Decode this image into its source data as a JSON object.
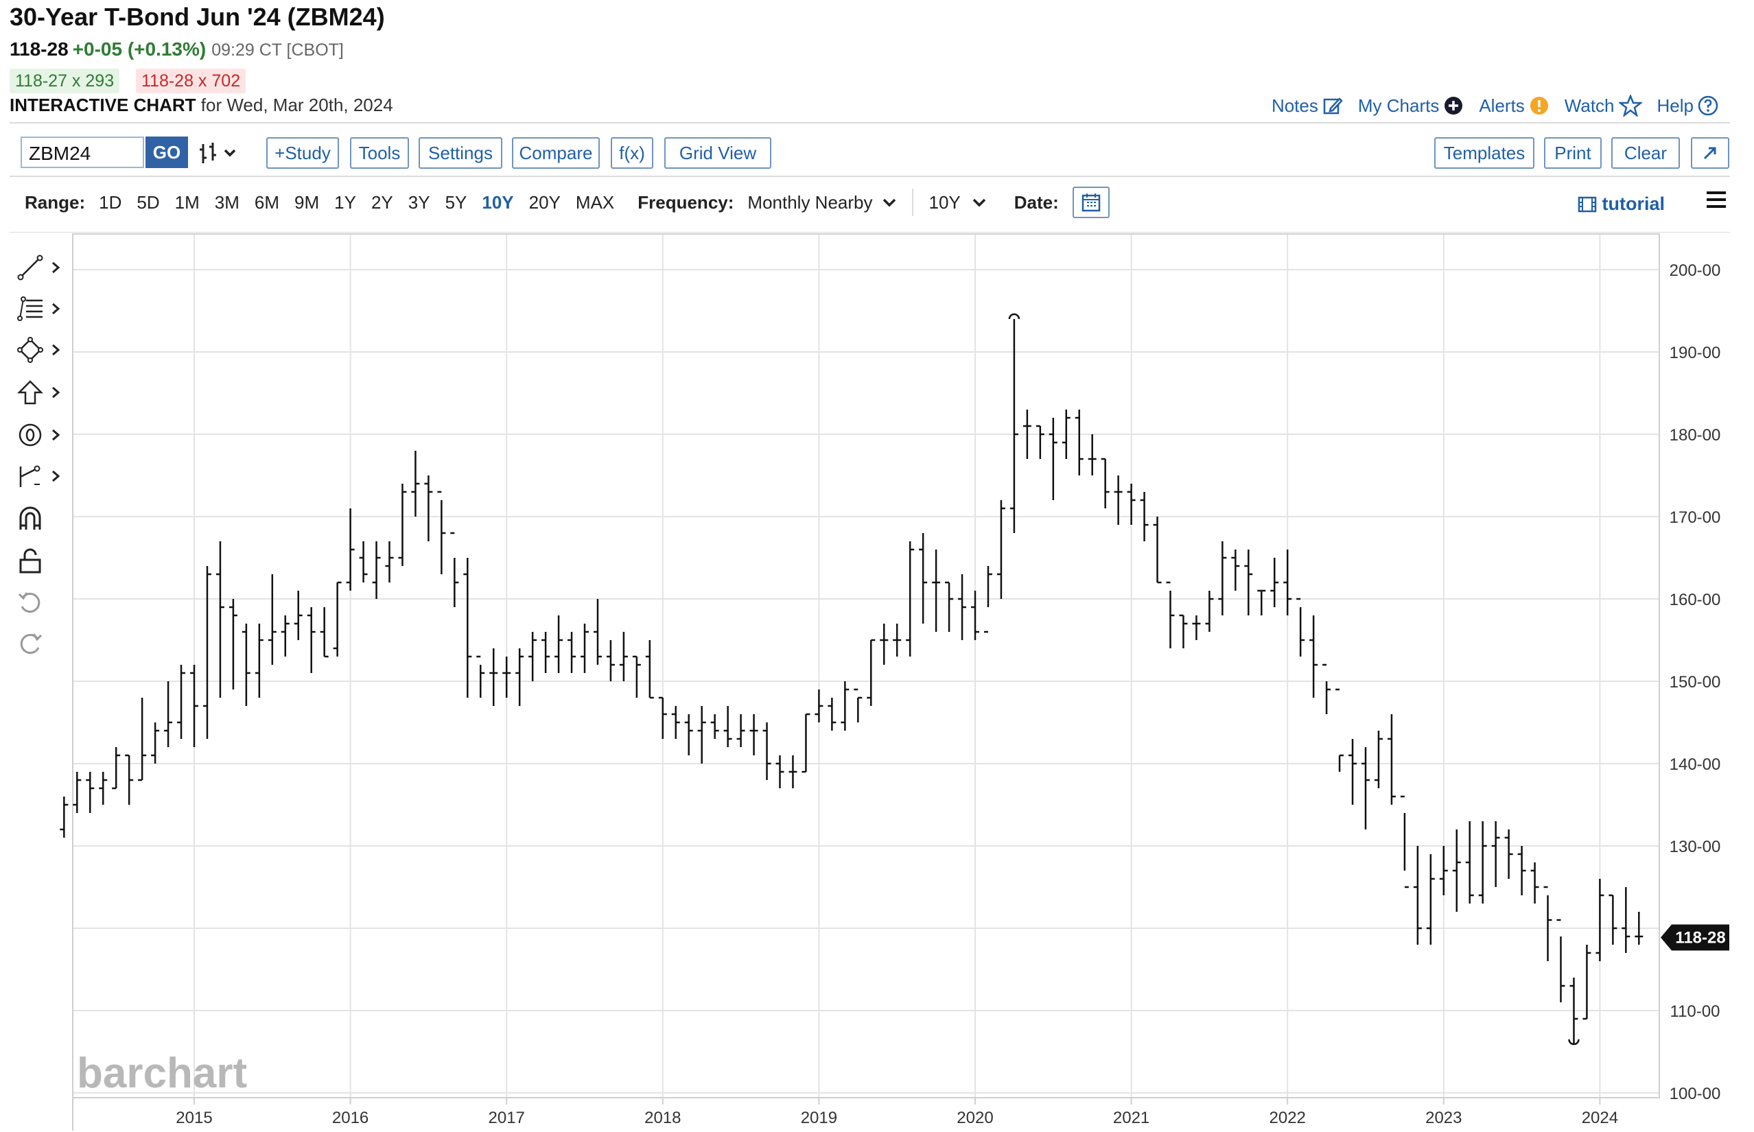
{
  "header": {
    "title": "30-Year T-Bond Jun '24 (ZBM24)",
    "last": "118-28",
    "change": "+0-05 (+0.13%)",
    "time": "09:29 CT [CBOT]",
    "bid": "118-27 x 293",
    "ask": "118-28 x 702",
    "chart_label": "INTERACTIVE CHART",
    "chart_date": "for Wed, Mar 20th, 2024"
  },
  "top_links": {
    "notes": "Notes",
    "my_charts": "My Charts",
    "alerts": "Alerts",
    "watch": "Watch",
    "help": "Help"
  },
  "toolbar": {
    "symbol_value": "ZBM24",
    "go": "GO",
    "study": "+Study",
    "tools": "Tools",
    "settings": "Settings",
    "compare": "Compare",
    "fx": "f(x)",
    "grid_view": "Grid View",
    "templates": "Templates",
    "print": "Print",
    "clear": "Clear"
  },
  "range_bar": {
    "range_label": "Range:",
    "ranges": [
      "1D",
      "5D",
      "1M",
      "3M",
      "6M",
      "9M",
      "1Y",
      "2Y",
      "3Y",
      "5Y",
      "10Y",
      "20Y",
      "MAX"
    ],
    "active_range": "10Y",
    "frequency_label": "Frequency:",
    "frequency_value": "Monthly Nearby",
    "period_value": "10Y",
    "date_label": "Date:",
    "tutorial": "tutorial"
  },
  "left_tools": [
    "line-draw-icon",
    "fib-tools-icon",
    "shapes-icon",
    "arrow-icon",
    "text-marker-icon",
    "measure-icon",
    "magnet-icon",
    "lock-icon",
    "undo-icon",
    "redo-icon"
  ],
  "colors": {
    "accent": "#1f5fa8",
    "up": "#2e7d32",
    "down": "#c62828",
    "price_tag": "#111111"
  },
  "chart_data": {
    "type": "ohlc",
    "watermark": "barchart",
    "y_ticks": [
      "200-00",
      "190-00",
      "180-00",
      "170-00",
      "160-00",
      "150-00",
      "140-00",
      "130-00",
      "110-00",
      "100-00"
    ],
    "x_ticks": [
      "2015",
      "2016",
      "2017",
      "2018",
      "2019",
      "2020",
      "2021",
      "2022",
      "2023",
      "2024"
    ],
    "ylim": [
      99,
      204
    ],
    "xlim": [
      "2014-03",
      "2024-07"
    ],
    "last_price_tag": "118-28",
    "last_price_value": 118.875,
    "high_marker": 194,
    "low_marker": 106.5,
    "grid": true,
    "bars": [
      [
        132,
        136,
        131,
        135
      ],
      [
        135,
        139,
        134,
        138
      ],
      [
        138,
        139,
        134,
        137
      ],
      [
        137,
        139,
        135,
        138
      ],
      [
        137,
        142,
        137,
        141
      ],
      [
        141,
        141,
        135,
        138
      ],
      [
        138,
        148,
        138,
        141
      ],
      [
        141,
        145,
        140,
        144
      ],
      [
        144,
        150,
        142,
        145
      ],
      [
        145,
        152,
        143,
        151
      ],
      [
        151,
        152,
        142,
        147
      ],
      [
        147,
        164,
        143,
        163
      ],
      [
        163,
        167,
        148,
        159
      ],
      [
        159,
        160,
        149,
        158
      ],
      [
        156,
        157,
        147,
        151
      ],
      [
        151,
        157,
        148,
        155
      ],
      [
        155,
        163,
        152,
        156
      ],
      [
        156,
        158,
        153,
        157
      ],
      [
        157,
        161,
        155,
        158
      ],
      [
        158,
        159,
        151,
        156
      ],
      [
        156,
        159,
        153,
        153
      ],
      [
        154,
        162,
        153,
        162
      ],
      [
        162,
        171,
        161,
        166
      ],
      [
        165,
        167,
        162,
        163
      ],
      [
        162,
        167,
        160,
        165
      ],
      [
        164,
        167,
        162,
        165
      ],
      [
        165,
        174,
        164,
        173
      ],
      [
        173,
        178,
        170,
        174
      ],
      [
        174,
        175,
        167,
        173
      ],
      [
        173,
        172,
        163,
        168
      ],
      [
        168,
        165,
        159,
        162
      ],
      [
        163,
        165,
        148,
        153
      ],
      [
        153,
        152,
        148,
        151
      ],
      [
        151,
        154,
        147,
        151
      ],
      [
        151,
        153,
        148,
        151
      ],
      [
        151,
        154,
        147,
        153
      ],
      [
        153,
        156,
        150,
        155
      ],
      [
        155,
        156,
        151,
        153
      ],
      [
        153,
        158,
        151,
        155
      ],
      [
        155,
        156,
        151,
        153
      ],
      [
        153,
        157,
        151,
        156
      ],
      [
        156,
        160,
        152,
        153
      ],
      [
        153,
        155,
        150,
        152
      ],
      [
        152,
        156,
        150,
        153
      ],
      [
        153,
        153,
        148,
        152
      ],
      [
        153,
        155,
        148,
        148
      ],
      [
        148,
        148,
        143,
        146
      ],
      [
        146,
        147,
        143,
        145
      ],
      [
        145,
        146,
        141,
        144
      ],
      [
        144,
        147,
        140,
        145
      ],
      [
        145,
        146,
        143,
        144
      ],
      [
        144,
        147,
        142,
        143
      ],
      [
        143,
        146,
        142,
        144
      ],
      [
        144,
        146,
        141,
        144
      ],
      [
        144,
        145,
        138,
        140
      ],
      [
        140,
        141,
        137,
        139
      ],
      [
        139,
        141,
        137,
        139
      ],
      [
        139,
        146,
        139,
        146
      ],
      [
        146,
        149,
        145,
        147
      ],
      [
        147,
        148,
        144,
        145
      ],
      [
        145,
        150,
        144,
        149
      ],
      [
        149,
        148,
        145,
        148
      ],
      [
        148,
        155,
        147,
        155
      ],
      [
        155,
        157,
        152,
        155
      ],
      [
        155,
        157,
        153,
        155
      ],
      [
        155,
        167,
        153,
        166
      ],
      [
        166,
        168,
        157,
        162
      ],
      [
        162,
        166,
        156,
        162
      ],
      [
        162,
        162,
        156,
        160
      ],
      [
        160,
        163,
        155,
        159
      ],
      [
        159,
        161,
        155,
        156
      ],
      [
        156,
        164,
        159,
        163
      ],
      [
        163,
        172,
        160,
        171
      ],
      [
        171,
        194,
        168,
        180
      ],
      [
        181,
        183,
        177,
        181
      ],
      [
        181,
        181,
        177,
        180
      ],
      [
        180,
        182,
        172,
        179
      ],
      [
        179,
        183,
        177,
        182
      ],
      [
        182,
        183,
        175,
        177
      ],
      [
        177,
        180,
        175,
        177
      ],
      [
        177,
        177,
        171,
        173
      ],
      [
        173,
        175,
        169,
        173
      ],
      [
        173,
        174,
        169,
        172
      ],
      [
        172,
        173,
        167,
        169
      ],
      [
        169,
        170,
        162,
        162
      ],
      [
        162,
        161,
        154,
        158
      ],
      [
        158,
        158,
        154,
        157
      ],
      [
        157,
        158,
        155,
        157
      ],
      [
        157,
        161,
        156,
        160
      ],
      [
        160,
        167,
        158,
        165
      ],
      [
        165,
        166,
        161,
        164
      ],
      [
        164,
        166,
        158,
        163
      ],
      [
        161,
        161,
        158,
        161
      ],
      [
        161,
        165,
        159,
        162
      ],
      [
        162,
        166,
        158,
        160
      ],
      [
        160,
        159,
        153,
        155
      ],
      [
        155,
        158,
        148,
        152
      ],
      [
        152,
        150,
        146,
        149
      ],
      [
        149,
        141,
        139,
        141
      ],
      [
        141,
        143,
        135,
        140
      ],
      [
        140,
        142,
        132,
        138
      ],
      [
        138,
        144,
        137,
        143
      ],
      [
        143,
        146,
        135,
        136
      ],
      [
        136,
        134,
        127,
        125
      ],
      [
        125,
        130,
        118,
        120
      ],
      [
        120,
        129,
        118,
        126
      ],
      [
        126,
        130,
        124,
        127
      ],
      [
        127,
        132,
        122,
        128
      ],
      [
        128,
        133,
        123,
        124
      ],
      [
        124,
        133,
        123,
        130
      ],
      [
        130,
        133,
        125,
        131
      ],
      [
        131,
        132,
        126,
        129
      ],
      [
        129,
        130,
        124,
        127
      ],
      [
        127,
        128,
        123,
        125
      ],
      [
        125,
        124,
        116,
        121
      ],
      [
        121,
        119,
        111,
        113
      ],
      [
        113,
        114,
        106,
        109
      ],
      [
        109,
        118,
        109,
        117
      ],
      [
        117,
        126,
        116,
        124
      ],
      [
        124,
        124,
        118,
        120
      ],
      [
        120,
        125,
        117,
        119
      ],
      [
        119,
        122,
        118,
        119
      ]
    ]
  }
}
